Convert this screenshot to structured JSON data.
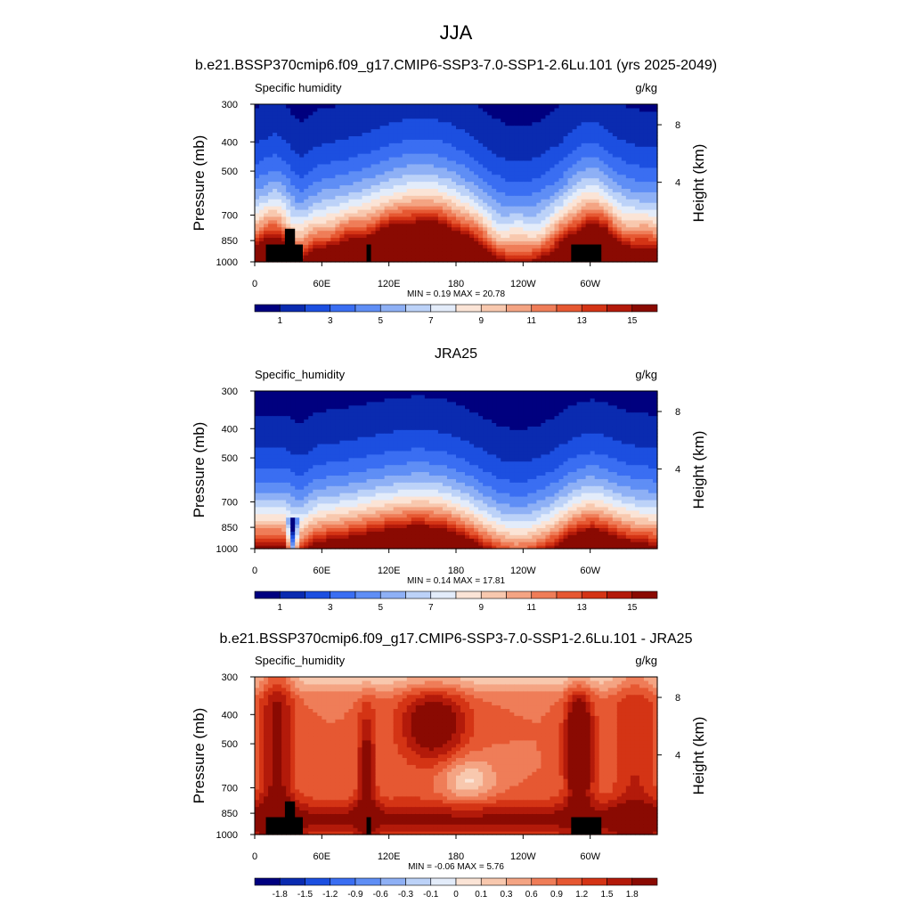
{
  "figure": {
    "title": "JJA"
  },
  "chart_data": [
    {
      "type": "heatmap",
      "title": "b.e21.BSSP370cmip6.f09_g17.CMIP6-SSP3-7.0-SSP1-2.6Lu.101 (yrs 2025-2049)",
      "left_string": "Specific humidity",
      "right_string": "g/kg",
      "ylabel": "Pressure (mb)",
      "ylabel_right": "Height (km)",
      "y_ticks": [
        "300",
        "400",
        "500",
        "700",
        "850",
        "1000"
      ],
      "y_ticks_right": [
        "8",
        "4"
      ],
      "x_ticks": [
        "0",
        "60E",
        "120E",
        "180",
        "120W",
        "60W"
      ],
      "x_range": [
        0,
        360
      ],
      "y_range": [
        1000,
        300
      ],
      "minmax": "MIN =   0.19  MAX =  20.78",
      "colorbar_labels": [
        "1",
        "3",
        "5",
        "7",
        "9",
        "11",
        "13",
        "15"
      ],
      "colorbar_palette": "BlueWhiteOrangeRed",
      "terrain": true,
      "field": "model"
    },
    {
      "type": "heatmap",
      "title": "JRA25",
      "left_string": "Specific_humidity",
      "right_string": "g/kg",
      "ylabel": "Pressure (mb)",
      "ylabel_right": "Height (km)",
      "y_ticks": [
        "300",
        "400",
        "500",
        "700",
        "850",
        "1000"
      ],
      "y_ticks_right": [
        "8",
        "4"
      ],
      "x_ticks": [
        "0",
        "60E",
        "120E",
        "180",
        "120W",
        "60W"
      ],
      "x_range": [
        0,
        360
      ],
      "y_range": [
        1000,
        300
      ],
      "minmax": "MIN =   0.14  MAX =  17.81",
      "colorbar_labels": [
        "1",
        "3",
        "5",
        "7",
        "9",
        "11",
        "13",
        "15"
      ],
      "colorbar_palette": "BlueWhiteOrangeRed",
      "terrain": false,
      "field": "obs"
    },
    {
      "type": "heatmap",
      "title": "b.e21.BSSP370cmip6.f09_g17.CMIP6-SSP3-7.0-SSP1-2.6Lu.101 - JRA25",
      "left_string": "Specific_humidity",
      "right_string": "g/kg",
      "ylabel": "Pressure (mb)",
      "ylabel_right": "Height (km)",
      "y_ticks": [
        "300",
        "400",
        "500",
        "700",
        "850",
        "1000"
      ],
      "y_ticks_right": [
        "8",
        "4"
      ],
      "x_ticks": [
        "0",
        "60E",
        "120E",
        "180",
        "120W",
        "60W"
      ],
      "x_range": [
        0,
        360
      ],
      "y_range": [
        1000,
        300
      ],
      "minmax": "MIN =  -0.06  MAX =   5.76",
      "colorbar_labels": [
        "-1.8",
        "-1.5",
        "-1.2",
        "-0.9",
        "-0.6",
        "-0.3",
        "-0.1",
        "0",
        "0.1",
        "0.3",
        "0.6",
        "0.9",
        "1.2",
        "1.5",
        "1.8"
      ],
      "colorbar_palette": "BlueWhiteOrangeRed",
      "terrain": true,
      "field": "diff"
    }
  ],
  "colors": {
    "palette": [
      "#00007f",
      "#0a2bb0",
      "#1c4fe0",
      "#3a6ef2",
      "#5f8ef5",
      "#8eb0f5",
      "#bcd2f8",
      "#e3ecfa",
      "#fbe4d6",
      "#f8c8ae",
      "#f4a483",
      "#ef7d58",
      "#e65832",
      "#d43415",
      "#b31a0a",
      "#8a0a02"
    ],
    "terrain": "#000000"
  }
}
